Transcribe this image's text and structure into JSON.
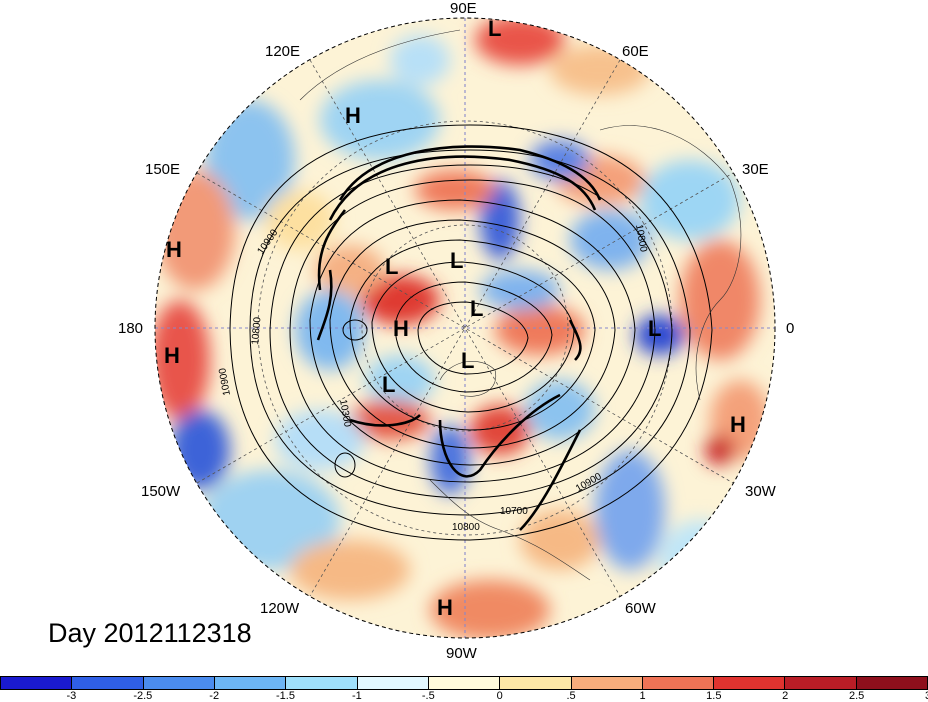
{
  "date_label": "Day 2012112318",
  "longitude_labels": {
    "lon_90e": "90E",
    "lon_60e": "60E",
    "lon_30e": "30E",
    "lon_0": "0",
    "lon_30w": "30W",
    "lon_60w": "60W",
    "lon_90w": "90W",
    "lon_120w": "120W",
    "lon_150w": "150W",
    "lon_180": "180",
    "lon_150e": "150E",
    "lon_120e": "120E"
  },
  "pressure_centers": [
    {
      "type": "L",
      "label": "L"
    },
    {
      "type": "H",
      "label": "H"
    },
    {
      "type": "H",
      "label": "H"
    },
    {
      "type": "H",
      "label": "H"
    },
    {
      "type": "L",
      "label": "L"
    },
    {
      "type": "L",
      "label": "L"
    },
    {
      "type": "L",
      "label": "L"
    },
    {
      "type": "H",
      "label": "H"
    },
    {
      "type": "L",
      "label": "L"
    },
    {
      "type": "L",
      "label": "L"
    },
    {
      "type": "L",
      "label": "L"
    },
    {
      "type": "H",
      "label": "H"
    },
    {
      "type": "H",
      "label": "H"
    }
  ],
  "contour_labels": [
    "10900",
    "10800",
    "10800",
    "10900",
    "10300",
    "10900",
    "10700",
    "10800"
  ],
  "colorbar": {
    "colors": [
      "#1a1ad0",
      "#2f5fe6",
      "#4b8cee",
      "#6db6f5",
      "#9fe0fb",
      "#e2f8ff",
      "#fffbdc",
      "#fde7a6",
      "#f7ad7c",
      "#ef7356",
      "#e0332f",
      "#b91d26",
      "#8e0f1c"
    ],
    "ticks": [
      "-3",
      "-2.5",
      "-2",
      "-1.5",
      "-1",
      "-.5",
      "0",
      ".5",
      "1",
      "1.5",
      "2",
      "2.5",
      "3"
    ]
  }
}
